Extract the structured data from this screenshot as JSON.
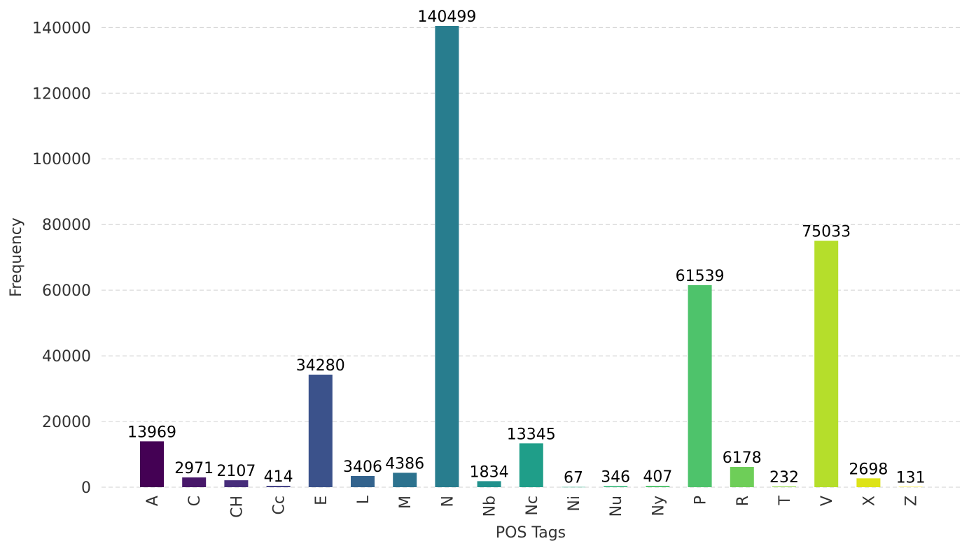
{
  "chart_data": {
    "type": "bar",
    "title": "",
    "xlabel": "POS Tags",
    "ylabel": "Frequency",
    "ylim": [
      0,
      140499
    ],
    "yticks": [
      0,
      20000,
      40000,
      60000,
      80000,
      100000,
      120000,
      140000
    ],
    "grid": "horizontal dashed",
    "categories": [
      "A",
      "C",
      "CH",
      "Cc",
      "E",
      "L",
      "M",
      "N",
      "Nb",
      "Nc",
      "Ni",
      "Nu",
      "Ny",
      "P",
      "R",
      "T",
      "V",
      "X",
      "Z"
    ],
    "values": [
      13969,
      2971,
      2107,
      414,
      34280,
      3406,
      4386,
      140499,
      1834,
      13345,
      67,
      346,
      407,
      61539,
      6178,
      232,
      75033,
      2698,
      131
    ],
    "colors": [
      "#440154",
      "#48186a",
      "#472d7b",
      "#424086",
      "#3b528b",
      "#33638d",
      "#2c728e",
      "#287d8e",
      "#21918c",
      "#1f9e89",
      "#25ab82",
      "#35b779",
      "#4ec36b",
      "#4ec36b",
      "#6ece58",
      "#90d743",
      "#b5de2b",
      "#dde318",
      "#fde725"
    ]
  }
}
